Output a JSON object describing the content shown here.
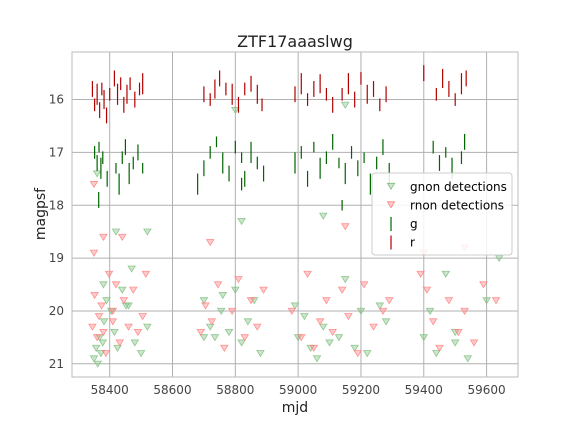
{
  "chart_data": {
    "type": "scatter",
    "title": "ZTF17aaaslwg",
    "xlabel": "mjd",
    "ylabel": "magpsf",
    "xlim": [
      58280,
      59700
    ],
    "ylim": [
      21.25,
      15.1
    ],
    "y_inverted": true,
    "grid": true,
    "legend_position": "center-right",
    "xticks": [
      58400,
      58600,
      58800,
      59000,
      59200,
      59400,
      59600
    ],
    "yticks": [
      16,
      17,
      18,
      19,
      20,
      21
    ],
    "series": [
      {
        "name": "gnon detections",
        "marker": "triangle-down",
        "color": "#7fbf7f",
        "x": [
          58350,
          58357,
          58362,
          58368,
          58372,
          58378,
          58382,
          58390,
          58405,
          58415,
          58425,
          58440,
          58452,
          58470,
          58480,
          58500,
          58520,
          58700,
          58720,
          58735,
          58755,
          58780,
          58800,
          58820,
          58840,
          58860,
          58880,
          58990,
          59000,
          59020,
          59040,
          59060,
          59080,
          59100,
          59130,
          59150,
          59180,
          59200,
          59220,
          59260,
          59280,
          59400,
          59420,
          59440,
          59470,
          59500,
          59540,
          59600,
          59640,
          58360,
          58380,
          58420,
          58800,
          59150,
          59080,
          58520,
          58460,
          58700,
          59500,
          58820,
          58760
        ],
        "y": [
          20.9,
          20.7,
          21.0,
          20.5,
          20.8,
          20.6,
          20.2,
          19.8,
          20.0,
          20.4,
          20.7,
          19.6,
          19.9,
          19.2,
          20.6,
          20.8,
          18.5,
          19.8,
          20.3,
          20.5,
          20.0,
          20.4,
          19.6,
          20.6,
          20.2,
          19.8,
          20.8,
          19.9,
          20.5,
          20.1,
          20.7,
          20.9,
          20.3,
          20.6,
          20.5,
          19.4,
          20.7,
          20.0,
          20.8,
          19.9,
          20.2,
          20.5,
          20.0,
          20.8,
          19.3,
          20.4,
          20.9,
          19.8,
          19.0,
          17.4,
          19.5,
          18.5,
          16.2,
          16.1,
          18.2,
          20.3,
          19.9,
          20.5,
          20.6,
          18.3,
          19.7
        ]
      },
      {
        "name": "rnon detections",
        "marker": "triangle-down",
        "color": "#ff8080",
        "x": [
          58345,
          58352,
          58360,
          58366,
          58374,
          58380,
          58388,
          58398,
          58410,
          58420,
          58432,
          58445,
          58460,
          58475,
          58490,
          58505,
          58515,
          58690,
          58705,
          58725,
          58745,
          58765,
          58790,
          58810,
          58830,
          58850,
          58870,
          58890,
          58980,
          59010,
          59030,
          59050,
          59070,
          59090,
          59110,
          59140,
          59160,
          59190,
          59210,
          59240,
          59270,
          59290,
          59390,
          59410,
          59430,
          59450,
          59480,
          59510,
          59530,
          59560,
          59590,
          59630,
          58350,
          58380,
          58440,
          58720,
          59150,
          59400,
          59530,
          58350,
          58410
        ],
        "y": [
          20.3,
          19.7,
          20.5,
          20.1,
          19.9,
          20.4,
          20.8,
          19.3,
          20.0,
          19.5,
          20.6,
          19.8,
          20.3,
          19.6,
          20.4,
          20.1,
          19.3,
          20.4,
          19.9,
          20.2,
          19.5,
          20.7,
          20.0,
          19.4,
          20.5,
          19.8,
          20.3,
          19.6,
          20.0,
          20.5,
          19.3,
          20.7,
          20.2,
          19.8,
          20.4,
          19.6,
          20.1,
          20.8,
          19.5,
          20.3,
          20.0,
          19.8,
          19.3,
          19.6,
          20.2,
          20.7,
          19.8,
          20.4,
          20.0,
          20.6,
          19.5,
          19.8,
          18.9,
          18.6,
          18.6,
          18.7,
          18.4,
          18.9,
          18.8,
          17.6,
          20.2
        ]
      },
      {
        "name": "g",
        "marker": "errorbar",
        "color": "#006400",
        "x": [
          58352,
          58360,
          58366,
          58372,
          58378,
          58392,
          58420,
          58430,
          58440,
          58450,
          58462,
          58475,
          58490,
          58505,
          58680,
          58700,
          58720,
          58740,
          58760,
          58780,
          58800,
          58820,
          58830,
          58850,
          58870,
          58890,
          58990,
          59010,
          59030,
          59050,
          59070,
          59090,
          59110,
          59130,
          59150,
          59170,
          59190,
          59210,
          59230,
          59250,
          59270,
          59290,
          59430,
          59450,
          59470,
          59490,
          59520,
          59530,
          58365,
          58820,
          59140
        ],
        "y": [
          17.0,
          17.2,
          16.9,
          17.3,
          17.1,
          17.5,
          17.3,
          17.6,
          17.1,
          16.9,
          17.4,
          17.2,
          17.0,
          17.3,
          17.6,
          17.3,
          17.0,
          16.8,
          17.2,
          17.4,
          16.9,
          17.1,
          17.5,
          17.0,
          17.2,
          17.4,
          17.2,
          17.0,
          17.5,
          16.9,
          17.3,
          17.1,
          16.8,
          17.2,
          17.4,
          17.0,
          17.3,
          17.1,
          17.6,
          17.2,
          16.9,
          17.4,
          16.9,
          17.2,
          17.0,
          17.3,
          17.1,
          16.8,
          17.9,
          17.6,
          18.0
        ],
        "err": [
          0.12,
          0.15,
          0.1,
          0.2,
          0.12,
          0.15,
          0.1,
          0.2,
          0.12,
          0.15,
          0.2,
          0.12,
          0.15,
          0.1,
          0.2,
          0.15,
          0.12,
          0.1,
          0.2,
          0.15,
          0.12,
          0.1,
          0.15,
          0.2,
          0.12,
          0.15,
          0.2,
          0.12,
          0.15,
          0.1,
          0.2,
          0.12,
          0.15,
          0.1,
          0.2,
          0.12,
          0.15,
          0.1,
          0.2,
          0.12,
          0.15,
          0.2,
          0.12,
          0.15,
          0.1,
          0.2,
          0.12,
          0.15,
          0.15,
          0.12,
          0.1
        ]
      },
      {
        "name": "r",
        "marker": "errorbar",
        "color": "#b00000",
        "x": [
          58345,
          58352,
          58360,
          58368,
          58375,
          58382,
          58390,
          58400,
          58415,
          58425,
          58435,
          58445,
          58455,
          58465,
          58480,
          58495,
          58505,
          58700,
          58720,
          58735,
          58750,
          58770,
          58790,
          58810,
          58830,
          58850,
          58870,
          58885,
          58990,
          59010,
          59030,
          59050,
          59070,
          59090,
          59110,
          59140,
          59160,
          59180,
          59200,
          59220,
          59240,
          59260,
          59280,
          59400,
          59440,
          59460,
          59480,
          59500,
          59520,
          59535
        ],
        "y": [
          15.8,
          16.1,
          15.9,
          16.2,
          15.8,
          16.0,
          16.3,
          15.9,
          15.6,
          15.9,
          15.7,
          16.1,
          15.9,
          15.7,
          16.0,
          15.8,
          15.7,
          15.9,
          16.0,
          15.8,
          15.6,
          15.8,
          15.9,
          16.1,
          15.8,
          15.7,
          15.9,
          16.1,
          15.9,
          15.7,
          16.0,
          15.8,
          15.7,
          15.9,
          16.1,
          15.9,
          15.7,
          16.0,
          15.6,
          15.9,
          15.8,
          16.1,
          15.9,
          15.5,
          15.9,
          15.6,
          15.8,
          16.0,
          15.7,
          15.6
        ],
        "err": [
          0.15,
          0.12,
          0.2,
          0.15,
          0.12,
          0.18,
          0.15,
          0.12,
          0.15,
          0.2,
          0.12,
          0.15,
          0.18,
          0.12,
          0.15,
          0.12,
          0.2,
          0.15,
          0.12,
          0.18,
          0.15,
          0.12,
          0.2,
          0.15,
          0.12,
          0.15,
          0.18,
          0.12,
          0.15,
          0.2,
          0.12,
          0.15,
          0.18,
          0.12,
          0.15,
          0.12,
          0.2,
          0.15,
          0.12,
          0.18,
          0.15,
          0.12,
          0.15,
          0.15,
          0.12,
          0.18,
          0.15,
          0.12,
          0.2,
          0.15
        ]
      }
    ]
  }
}
